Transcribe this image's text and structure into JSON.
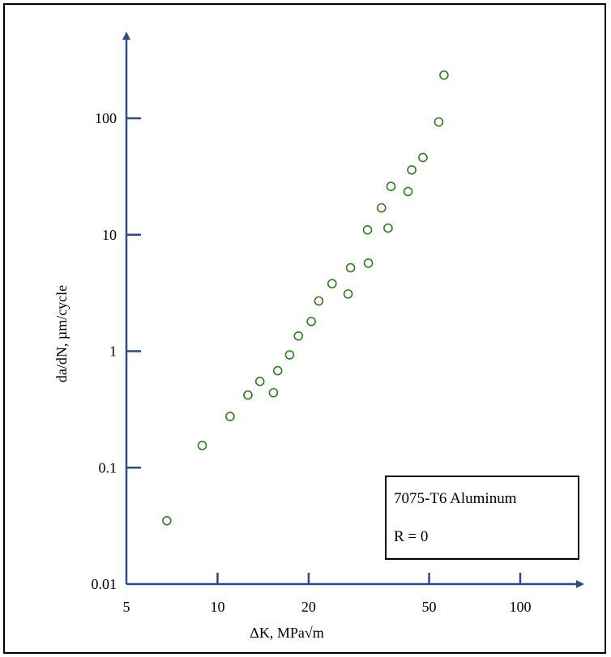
{
  "chart_data": {
    "type": "scatter",
    "title": "",
    "xlabel": "ΔK, MPa√m",
    "ylabel": "da/dN, µm/cycle",
    "xscale": "log",
    "yscale": "log",
    "xlim": [
      5,
      150
    ],
    "ylim": [
      0.01,
      300
    ],
    "x_ticks": [
      {
        "value": 5,
        "label": "5"
      },
      {
        "value": 10,
        "label": "10"
      },
      {
        "value": 20,
        "label": "20"
      },
      {
        "value": 50,
        "label": "50"
      },
      {
        "value": 100,
        "label": "100"
      }
    ],
    "y_ticks": [
      {
        "value": 0.01,
        "label": "0.01"
      },
      {
        "value": 0.1,
        "label": "0.1"
      },
      {
        "value": 1,
        "label": "1"
      },
      {
        "value": 10,
        "label": "10"
      },
      {
        "value": 100,
        "label": "100"
      }
    ],
    "grid": false,
    "legend": {
      "placement": "bottom-right",
      "lines": [
        "7075-T6 Aluminum",
        "R = 0"
      ]
    },
    "marker": "open-circle",
    "marker_color": "#2e7d1e",
    "axis_color": "#2f4a8c",
    "series": [
      {
        "points": [
          [
            6.8,
            0.035
          ],
          [
            8.9,
            0.155
          ],
          [
            11.0,
            0.275
          ],
          [
            12.6,
            0.42
          ],
          [
            13.8,
            0.55
          ],
          [
            15.3,
            0.44
          ],
          [
            15.8,
            0.68
          ],
          [
            17.3,
            0.93
          ],
          [
            18.5,
            1.35
          ],
          [
            20.4,
            1.8
          ],
          [
            21.6,
            2.7
          ],
          [
            23.9,
            3.8
          ],
          [
            27.0,
            3.1
          ],
          [
            27.5,
            5.2
          ],
          [
            31.5,
            5.7
          ],
          [
            31.3,
            11.0
          ],
          [
            34.8,
            17.0
          ],
          [
            36.6,
            11.4
          ],
          [
            37.4,
            26.0
          ],
          [
            42.6,
            23.5
          ],
          [
            43.8,
            36.0
          ],
          [
            47.7,
            46.0
          ],
          [
            53.8,
            93.0
          ],
          [
            56.0,
            235.0
          ]
        ]
      }
    ]
  }
}
